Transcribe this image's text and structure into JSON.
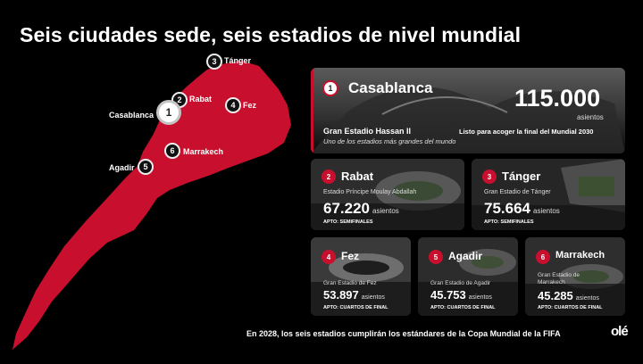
{
  "title": "Seis ciudades sede, seis estadios de nivel mundial",
  "colors": {
    "accent": "#c8102e",
    "background": "#000000"
  },
  "map_pins": [
    {
      "num": "1",
      "label": "Casablanca"
    },
    {
      "num": "2",
      "label": "Rabat"
    },
    {
      "num": "3",
      "label": "Tánger"
    },
    {
      "num": "4",
      "label": "Fez"
    },
    {
      "num": "5",
      "label": "Agadir"
    },
    {
      "num": "6",
      "label": "Marrakech"
    }
  ],
  "featured": {
    "num": "1",
    "city": "Casablanca",
    "seats": "115.000",
    "seats_unit": "asientos",
    "stadium": "Gran Estadio Hassan II",
    "status": "Listo para acoger la final del Mundial 2030",
    "subtitle": "Uno de los estadios más grandes del mundo"
  },
  "cards": [
    {
      "num": "2",
      "city": "Rabat",
      "stadium": "Estadio Príncipe Moulay Abdallah",
      "seats": "67.220",
      "seats_unit": "asientos",
      "apto": "APTO: SEMIFINALES"
    },
    {
      "num": "3",
      "city": "Tánger",
      "stadium": "Gran Estadio de Tánger",
      "seats": "75.664",
      "seats_unit": "asientos",
      "apto": "APTO: SEMIFINALES"
    },
    {
      "num": "4",
      "city": "Fez",
      "stadium": "Gran Estadio de Fez",
      "seats": "53.897",
      "seats_unit": "asientos",
      "apto": "APTO: CUARTOS DE FINAL"
    },
    {
      "num": "5",
      "city": "Agadir",
      "stadium": "Gran Estadio de Agadir",
      "seats": "45.753",
      "seats_unit": "asientos",
      "apto": "APTO: CUARTOS DE FINAL"
    },
    {
      "num": "6",
      "city": "Marrakech",
      "stadium": "Gran Estadio de Marrakech",
      "seats": "45.285",
      "seats_unit": "asientos",
      "apto": "APTO: CUARTOS DE FINAL"
    }
  ],
  "footer": "En 2028, los seis estadios cumplirán los estándares de la Copa Mundial de la FIFA",
  "logo": "olé"
}
